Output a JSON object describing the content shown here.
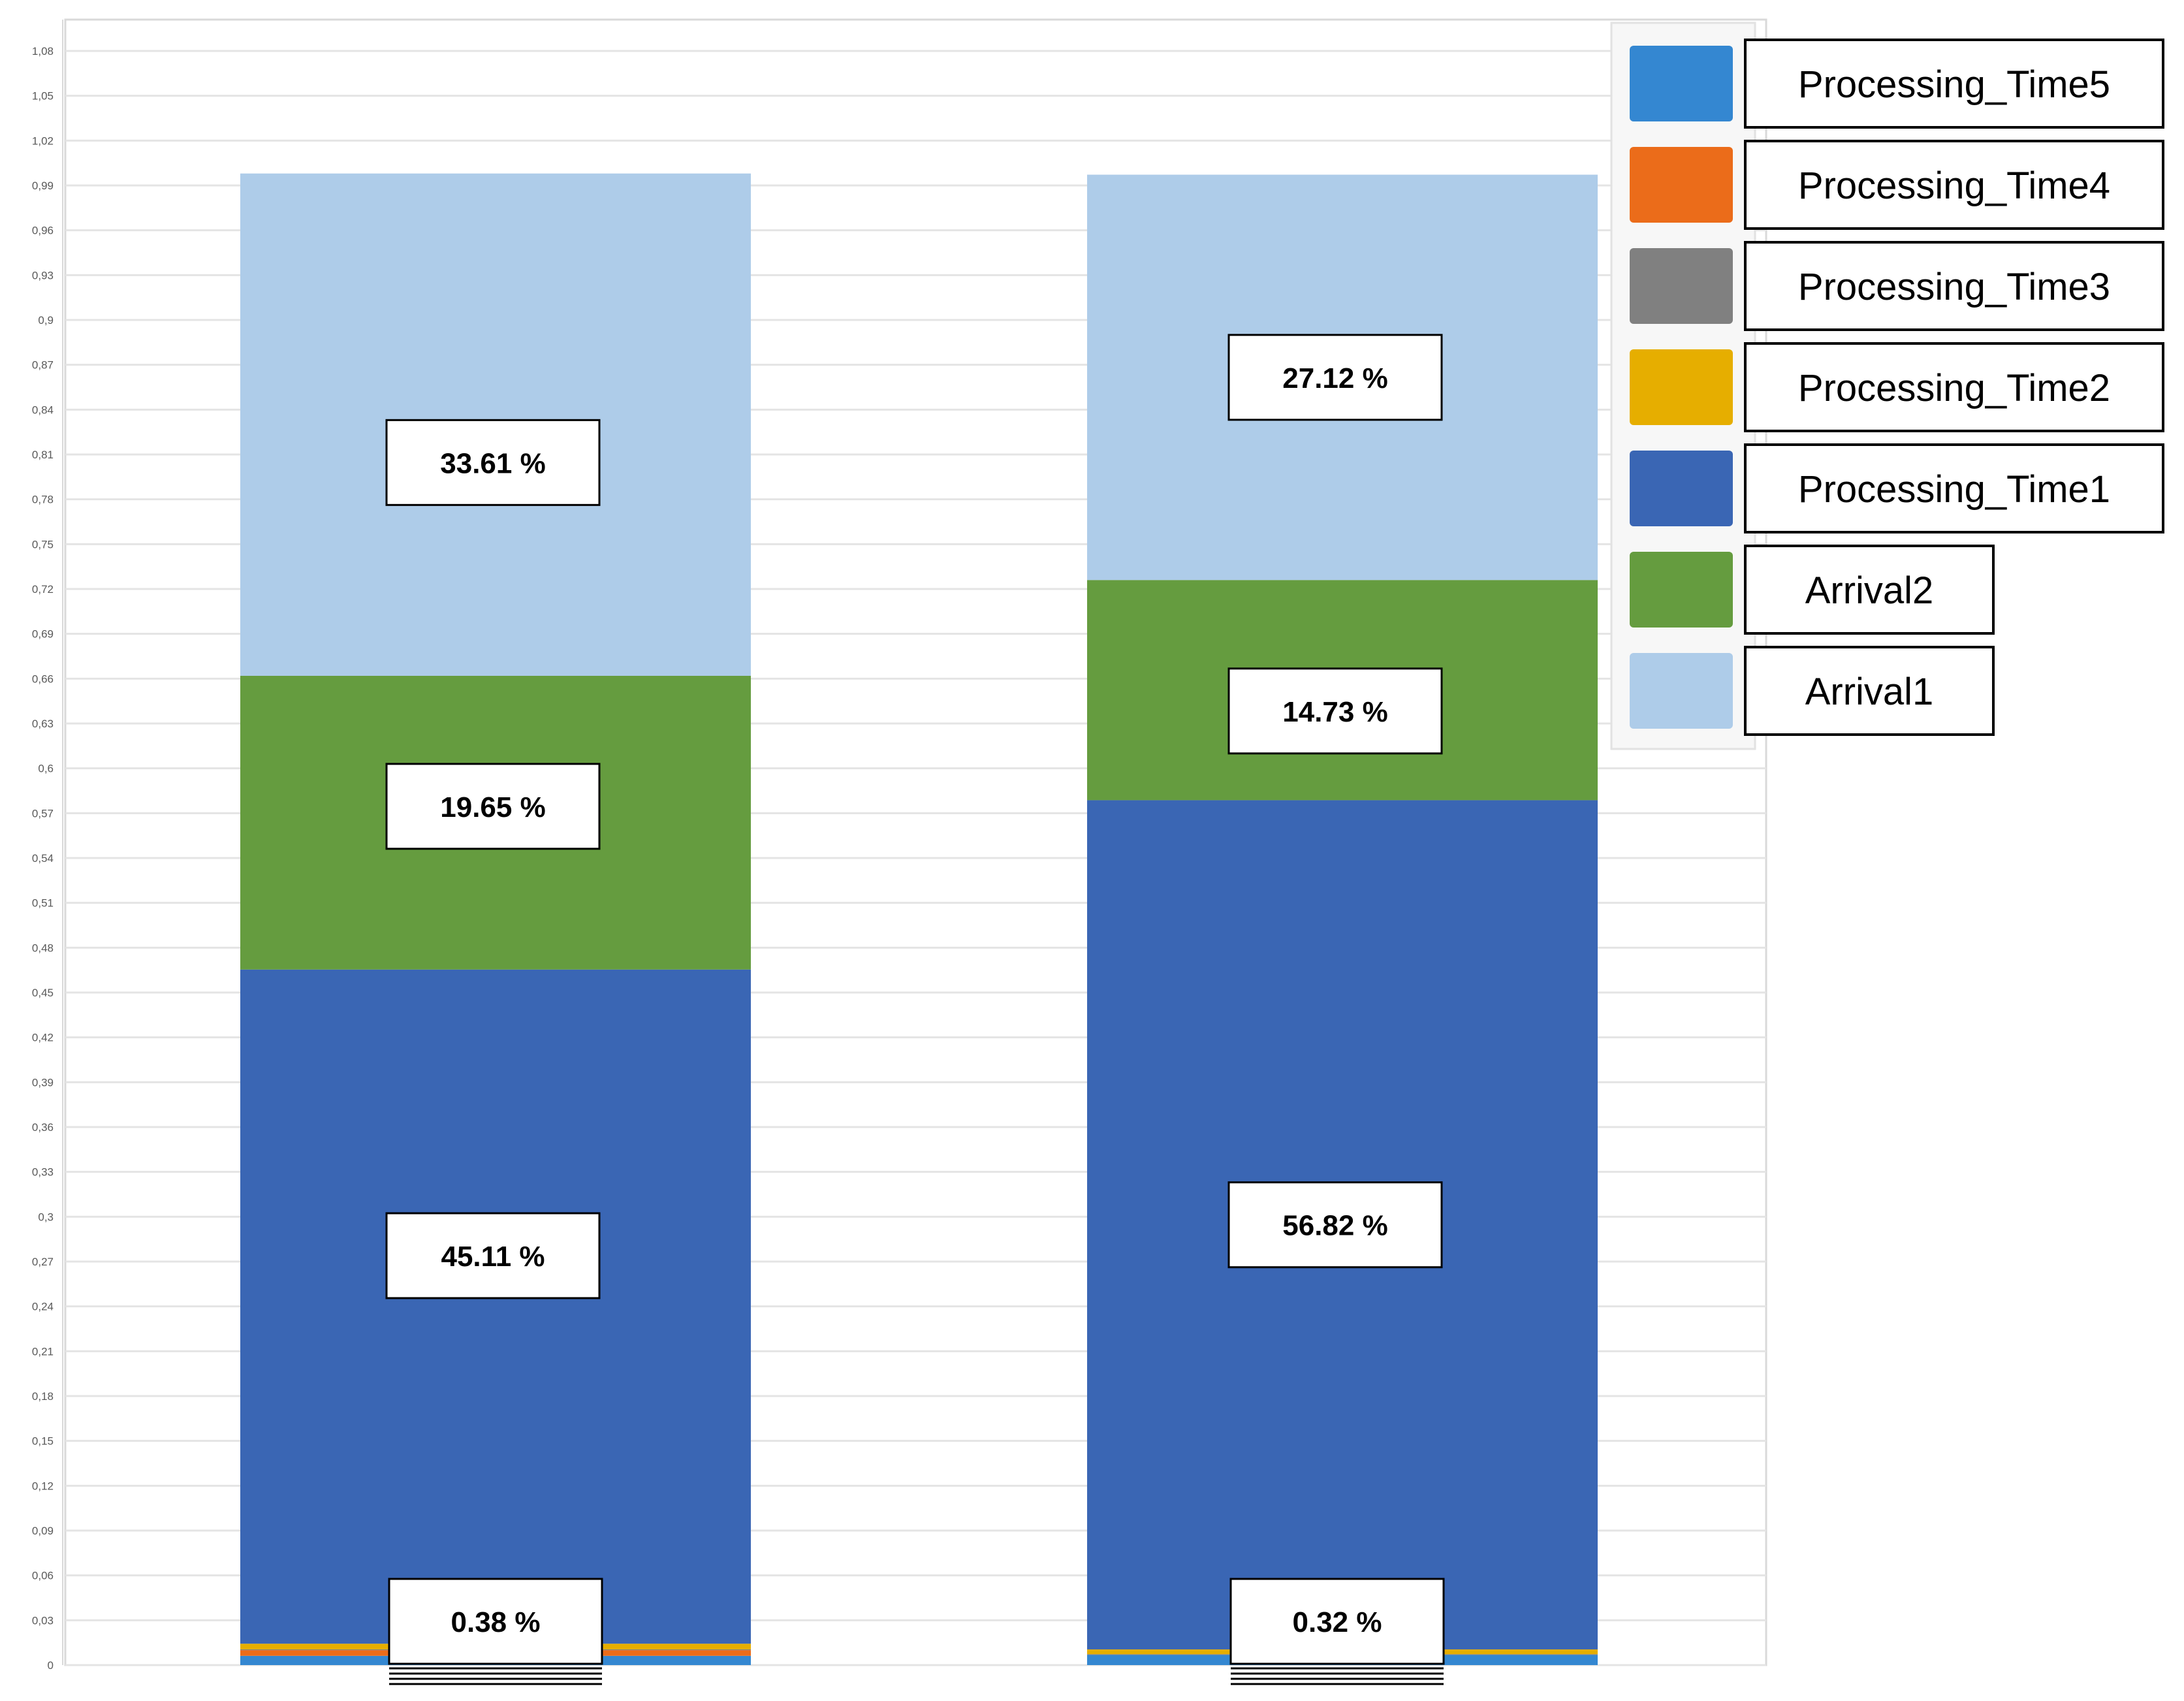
{
  "chart_data": {
    "type": "bar",
    "stacked": true,
    "title": "",
    "xlabel": "",
    "ylabel": "",
    "ylim": [
      0,
      1.08
    ],
    "yticks": [
      "0",
      "0,03",
      "0,06",
      "0,09",
      "0,12",
      "0,15",
      "0,18",
      "0,21",
      "0,24",
      "0,27",
      "0,3",
      "0,33",
      "0,36",
      "0,39",
      "0,42",
      "0,45",
      "0,48",
      "0,51",
      "0,54",
      "0,57",
      "0,6",
      "0,63",
      "0,66",
      "0,69",
      "0,72",
      "0,75",
      "0,78",
      "0,81",
      "0,84",
      "0,87",
      "0,9",
      "0,93",
      "0,96",
      "0,99",
      "1,02",
      "1,05",
      "1,08"
    ],
    "categories": [
      "",
      ""
    ],
    "grid": true,
    "legend_position": "top-right",
    "series": [
      {
        "name": "Processing_Time5",
        "color": "#3487d1",
        "values": [
          0.0062,
          0.0068
        ]
      },
      {
        "name": "Processing_Time4",
        "color": "#eb6c1a",
        "values": [
          0.0038,
          0.0
        ]
      },
      {
        "name": "Processing_Time3",
        "color": "#808080",
        "values": [
          0.0005,
          0.0005
        ]
      },
      {
        "name": "Processing_Time2",
        "color": "#e6ae00",
        "values": [
          0.0038,
          0.0032
        ]
      },
      {
        "name": "Processing_Time1",
        "color": "#3a66b4",
        "values": [
          0.4511,
          0.5682
        ]
      },
      {
        "name": "Arrival2",
        "color": "#659c3f",
        "values": [
          0.1965,
          0.1473
        ]
      },
      {
        "name": "Arrival1",
        "color": "#aecce9",
        "values": [
          0.3361,
          0.2712
        ]
      }
    ],
    "data_labels": [
      [
        "0.38 %",
        "45.11 %",
        "19.65 %",
        "33.61 %"
      ],
      [
        "0.32 %",
        "56.82 %",
        "14.73 %",
        "27.12 %"
      ]
    ]
  }
}
